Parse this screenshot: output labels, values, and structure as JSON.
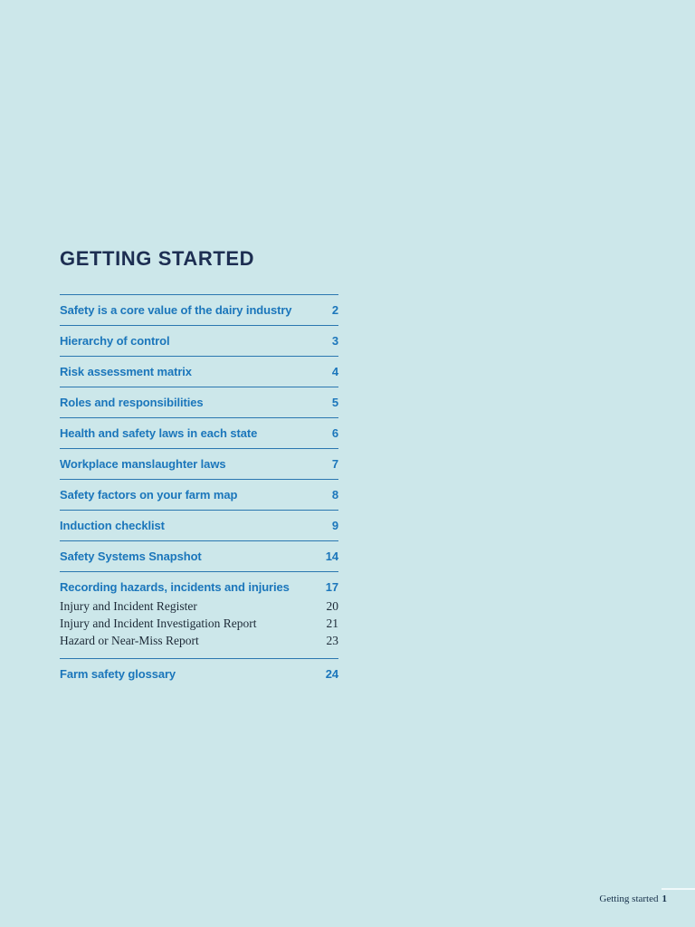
{
  "page": {
    "title": "GETTING STARTED",
    "background_color": "#cce7ea",
    "title_color": "#1d2e52",
    "entry_color": "#1b76bb",
    "rule_color": "#2a77b0",
    "sub_entry_color": "#1c2936",
    "footer": {
      "label": "Getting started",
      "page_number": "1"
    }
  },
  "toc": {
    "entries": [
      {
        "label": "Safety is a core value of the dairy industry",
        "page": "2"
      },
      {
        "label": "Hierarchy of control",
        "page": "3"
      },
      {
        "label": "Risk assessment matrix",
        "page": "4"
      },
      {
        "label": "Roles and responsibilities",
        "page": "5"
      },
      {
        "label": "Health and safety laws in each state",
        "page": "6"
      },
      {
        "label": "Workplace manslaughter laws",
        "page": "7"
      },
      {
        "label": "Safety factors on your farm map",
        "page": "8"
      },
      {
        "label": "Induction checklist",
        "page": "9"
      },
      {
        "label": "Safety Systems Snapshot",
        "page": "14"
      },
      {
        "label": "Recording hazards, incidents and injuries",
        "page": "17"
      },
      {
        "label": "Farm safety glossary",
        "page": "24"
      }
    ],
    "sub_entries": [
      {
        "label": "Injury and Incident Register",
        "page": "20"
      },
      {
        "label": "Injury and Incident Investigation Report",
        "page": "21"
      },
      {
        "label": "Hazard or Near-Miss Report",
        "page": "23"
      }
    ]
  }
}
